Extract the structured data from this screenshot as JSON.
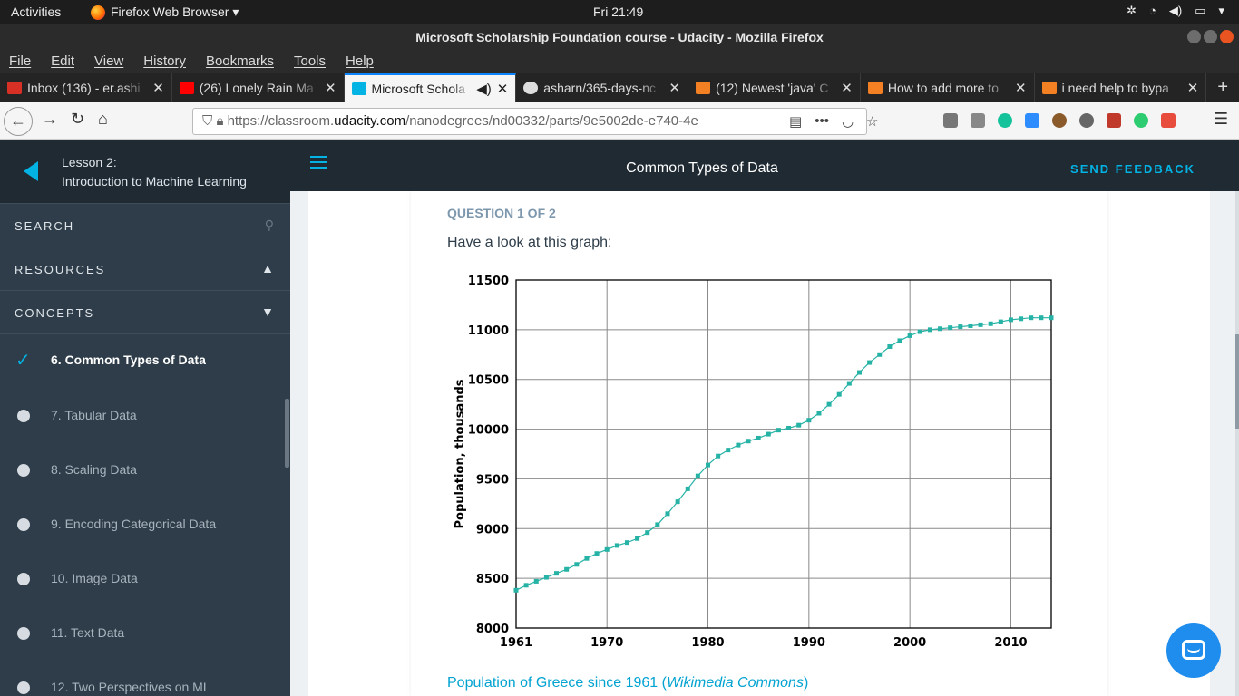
{
  "os_topbar": {
    "activities": "Activities",
    "app_name": "Firefox Web Browser ▾",
    "clock": "Fri 21:49",
    "tray_icons": [
      "network-icon",
      "wifi-icon",
      "volume-icon",
      "battery-icon",
      "power-menu-icon"
    ]
  },
  "window": {
    "title": "Microsoft Scholarship Foundation course - Udacity - Mozilla Firefox"
  },
  "menubar": [
    "File",
    "Edit",
    "View",
    "History",
    "Bookmarks",
    "Tools",
    "Help"
  ],
  "tabs": [
    {
      "label": "Inbox (136) - er.ashi",
      "icon_color": "#d93025"
    },
    {
      "label": "(26) Lonely Rain Ma",
      "icon_color": "#ff0000"
    },
    {
      "label": "Microsoft Schola",
      "icon_color": "#02b3e4",
      "active": true
    },
    {
      "label": "asharn/365-days-nc",
      "icon_color": "#dddddd"
    },
    {
      "label": "(12) Newest 'java' C",
      "icon_color": "#f48024"
    },
    {
      "label": "How to add more to",
      "icon_color": "#f48024"
    },
    {
      "label": "i need help to bypa",
      "icon_color": "#f48024"
    }
  ],
  "url": {
    "prefix": "https://classroom.",
    "domain": "udacity.com",
    "path": "/nanodegrees/nd00332/parts/9e5002de-e740-4e"
  },
  "sidebar": {
    "lesson_number": "Lesson 2:",
    "lesson_title": "Introduction to Machine Learning",
    "search_label": "SEARCH",
    "resources_label": "RESOURCES",
    "concepts_label": "CONCEPTS",
    "concepts": [
      {
        "label": "6. Common Types of Data",
        "done": true
      },
      {
        "label": "7. Tabular Data"
      },
      {
        "label": "8. Scaling Data"
      },
      {
        "label": "9. Encoding Categorical Data"
      },
      {
        "label": "10. Image Data"
      },
      {
        "label": "11. Text Data"
      },
      {
        "label": "12. Two Perspectives on ML"
      }
    ]
  },
  "header": {
    "title": "Common Types of Data",
    "feedback": "SEND FEEDBACK"
  },
  "question": {
    "number": "QUESTION 1 OF 2",
    "text": "Have a look at this graph:",
    "caption_main": "Population of Greece since 1961 (",
    "caption_italic": "Wikimedia Commons",
    "caption_end": ")"
  },
  "chart_data": {
    "type": "line",
    "title": "",
    "xlabel": "",
    "ylabel": "Population, thousands",
    "xlim": [
      1961,
      2014
    ],
    "ylim": [
      8000,
      11500
    ],
    "xticks": [
      1961,
      1970,
      1980,
      1990,
      2000,
      2010
    ],
    "yticks": [
      8000,
      8500,
      9000,
      9500,
      10000,
      10500,
      11000,
      11500
    ],
    "grid": true,
    "color": "#26b3a6",
    "x": [
      1961,
      1962,
      1963,
      1964,
      1965,
      1966,
      1967,
      1968,
      1969,
      1970,
      1971,
      1972,
      1973,
      1974,
      1975,
      1976,
      1977,
      1978,
      1979,
      1980,
      1981,
      1982,
      1983,
      1984,
      1985,
      1986,
      1987,
      1988,
      1989,
      1990,
      1991,
      1992,
      1993,
      1994,
      1995,
      1996,
      1997,
      1998,
      1999,
      2000,
      2001,
      2002,
      2003,
      2004,
      2005,
      2006,
      2007,
      2008,
      2009,
      2010,
      2011,
      2012,
      2013,
      2014
    ],
    "y": [
      8380,
      8430,
      8470,
      8510,
      8550,
      8590,
      8640,
      8700,
      8750,
      8790,
      8830,
      8860,
      8900,
      8960,
      9040,
      9150,
      9270,
      9400,
      9530,
      9640,
      9730,
      9790,
      9840,
      9880,
      9910,
      9950,
      9990,
      10010,
      10040,
      10090,
      10160,
      10250,
      10350,
      10460,
      10570,
      10670,
      10750,
      10830,
      10890,
      10940,
      10980,
      11000,
      11010,
      11020,
      11030,
      11040,
      11050,
      11060,
      11080,
      11100,
      11110,
      11120,
      11120,
      11120
    ]
  }
}
